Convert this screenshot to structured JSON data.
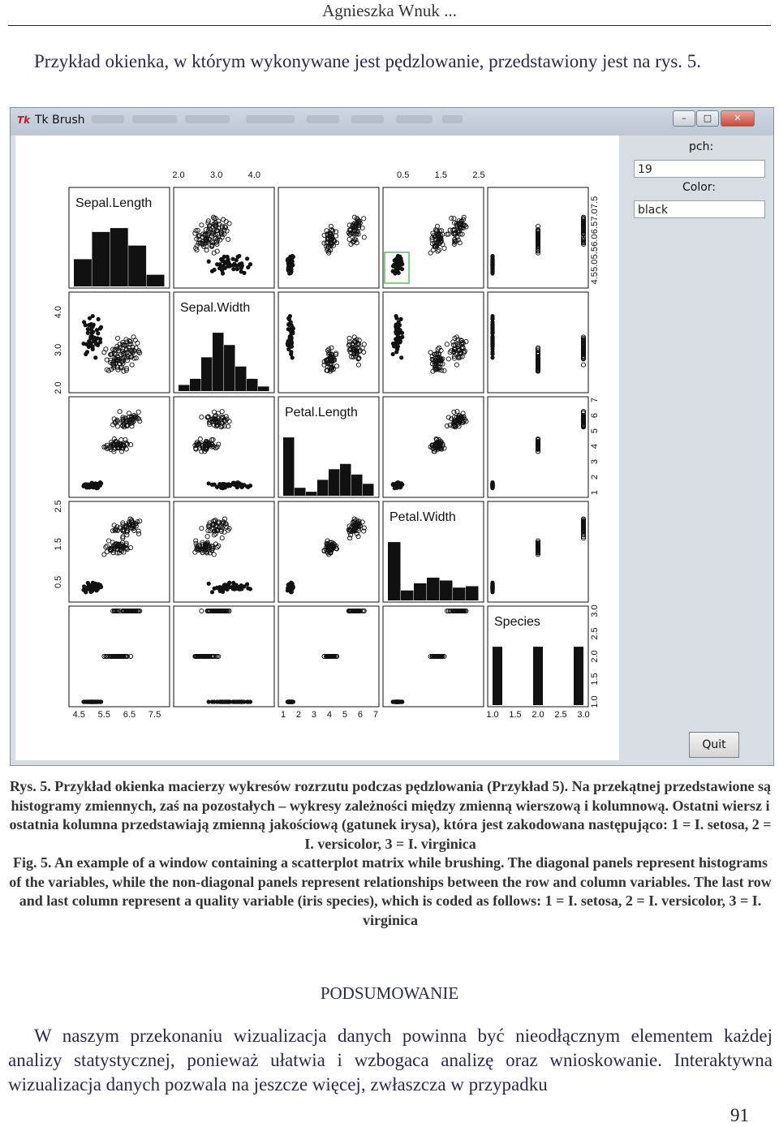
{
  "running_head": "Agnieszka Wnuk ...",
  "intro": "Przykład okienka, w którym wykonywane jest pędzlowanie, przedstawiony jest na rys. 5.",
  "window": {
    "title": "Tk Brush",
    "minimize": "–",
    "maximize": "□",
    "close": "✕",
    "pch_label": "pch:",
    "pch_value": "19",
    "color_label": "Color:",
    "color_value": "black",
    "quit_label": "Quit",
    "colors": {
      "window_bg": "#d8dde4",
      "brush_rect": "#5fbf5f",
      "plot_ink": "#111111"
    }
  },
  "chart_data": {
    "type": "scatter",
    "kind": "scatterplot-matrix",
    "variables": [
      "Sepal.Length",
      "Sepal.Width",
      "Petal.Length",
      "Petal.Width",
      "Species"
    ],
    "ranges": {
      "Sepal.Length": [
        4.3,
        7.9
      ],
      "Sepal.Width": [
        2.0,
        4.4
      ],
      "Petal.Length": [
        1.0,
        6.9
      ],
      "Petal.Width": [
        0.1,
        2.5
      ],
      "Species": [
        1,
        3
      ]
    },
    "ticks": {
      "Sepal.Length": [
        "4.5",
        "5.5",
        "6.5",
        "7.5"
      ],
      "Sepal.Length_right": [
        "4.5",
        "5.0",
        "5.5",
        "6.0",
        "6.5",
        "7.0",
        "7.5"
      ],
      "Sepal.Width": [
        "2.0",
        "3.0",
        "4.0"
      ],
      "Petal.Length": [
        "1",
        "2",
        "3",
        "4",
        "5",
        "6",
        "7"
      ],
      "Petal.Width": [
        "0.5",
        "1.5",
        "2.5"
      ],
      "Species": [
        "1.0",
        "1.5",
        "2.0",
        "2.5",
        "3.0"
      ]
    },
    "histograms": {
      "Sepal.Length": [
        14,
        28,
        30,
        21,
        6
      ],
      "Sepal.Width": [
        4,
        8,
        22,
        38,
        30,
        16,
        8,
        3
      ],
      "Petal.Length": [
        44,
        6,
        3,
        12,
        20,
        24,
        16,
        9
      ],
      "Petal.Width": [
        41,
        7,
        12,
        16,
        14,
        9,
        10
      ],
      "Species": [
        50,
        50,
        50
      ]
    },
    "groups": [
      {
        "species": 1,
        "name": "setosa",
        "brushed": true,
        "SL": [
          4.3,
          5.8
        ],
        "SW": [
          2.3,
          4.4
        ],
        "PL": [
          1.0,
          1.9
        ],
        "PW": [
          0.1,
          0.6
        ]
      },
      {
        "species": 2,
        "name": "versicolor",
        "brushed": false,
        "SL": [
          4.9,
          7.0
        ],
        "SW": [
          2.0,
          3.4
        ],
        "PL": [
          3.0,
          5.1
        ],
        "PW": [
          1.0,
          1.8
        ]
      },
      {
        "species": 3,
        "name": "virginica",
        "brushed": false,
        "SL": [
          4.9,
          7.9
        ],
        "SW": [
          2.2,
          3.8
        ],
        "PL": [
          4.5,
          6.9
        ],
        "PW": [
          1.4,
          2.5
        ]
      }
    ]
  },
  "caption_pl": "Rys. 5. Przykład okienka macierzy wykresów rozrzutu podczas pędzlowania (Przykład 5). Na przekątnej przedstawione są histogramy zmiennych, zaś na pozostałych – wykresy zależności między zmienną wierszową i kolumnową. Ostatni wiersz i ostatnia kolumna przedstawiają zmienną jakościową (gatunek irysa), która jest zakodowana następująco: 1 = I. setosa, 2 = I. versicolor, 3 = I. virginica",
  "caption_en": "Fig. 5. An example of a window containing a scatterplot matrix while brushing. The diagonal panels represent histograms of the variables, while the non-diagonal panels represent relationships between the row and column variables. The last row and last column represent a quality variable (iris species), which is coded as follows: 1 = I. setosa, 2 = I. versicolor, 3 = I. virginica",
  "section_title": "PODSUMOWANIE",
  "body": "W naszym przekonaniu wizualizacja danych powinna być nieodłącznym elementem każdej analizy statystycznej, ponieważ ułatwia i wzbogaca analizę oraz wnioskowanie. Interaktywna wizualizacja danych pozwala na jeszcze więcej, zwłaszcza w przypadku",
  "page_number": "91"
}
